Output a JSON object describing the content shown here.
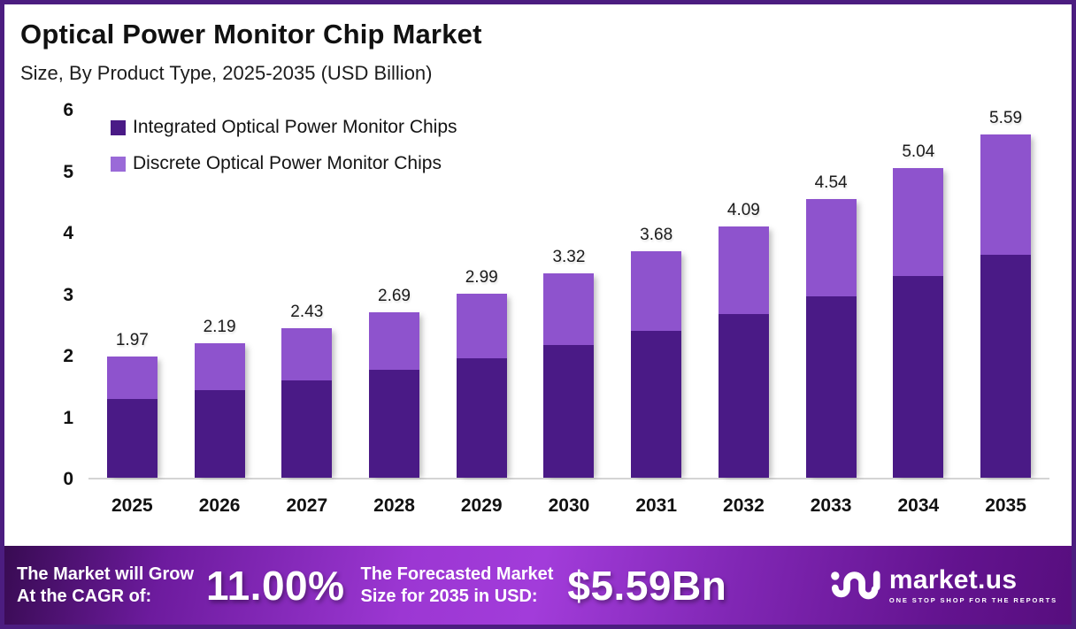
{
  "header": {
    "title": "Optical Power Monitor Chip Market",
    "subtitle": "Size, By Product Type, 2025-2035 (USD Billion)"
  },
  "colors": {
    "integrated": "#4A1A86",
    "discrete": "#8E53CD",
    "legend_discrete": "#9A6AD8",
    "border": "#4C1D80",
    "banner_text": "#FFFFFF"
  },
  "chart_data": {
    "type": "bar",
    "stacked": true,
    "title": "Optical Power Monitor Chip Market Size, By Product Type, 2025-2035 (USD Billion)",
    "categories": [
      "2025",
      "2026",
      "2027",
      "2028",
      "2029",
      "2030",
      "2031",
      "2032",
      "2033",
      "2034",
      "2035"
    ],
    "series": [
      {
        "name": "Integrated Optical Power Monitor Chips",
        "color": "#4A1A86",
        "values": [
          1.28,
          1.42,
          1.58,
          1.75,
          1.94,
          2.16,
          2.39,
          2.66,
          2.95,
          3.28,
          3.63
        ]
      },
      {
        "name": "Discrete Optical Power Monitor Chips",
        "color": "#8E53CD",
        "values": [
          0.69,
          0.77,
          0.85,
          0.94,
          1.05,
          1.16,
          1.29,
          1.43,
          1.59,
          1.76,
          1.96
        ]
      }
    ],
    "totals": [
      1.97,
      2.19,
      2.43,
      2.69,
      2.99,
      3.32,
      3.68,
      4.09,
      4.54,
      5.04,
      5.59
    ],
    "total_labels": [
      "1.97",
      "2.19",
      "2.43",
      "2.69",
      "2.99",
      "3.32",
      "3.68",
      "4.09",
      "4.54",
      "5.04",
      "5.59"
    ],
    "xlabel": "",
    "ylabel": "USD Billion",
    "ylim": [
      0,
      6
    ],
    "yticks": [
      "0",
      "1",
      "2",
      "3",
      "4",
      "5",
      "6"
    ],
    "grid": false,
    "legend_position": "top-left"
  },
  "banner": {
    "cagr_label_line1": "The Market will Grow",
    "cagr_label_line2": "At the CAGR of:",
    "cagr_value": "11.00%",
    "forecast_label_line1": "The Forecasted Market",
    "forecast_label_line2": "Size for 2035 in USD:",
    "forecast_value": "$5.59Bn",
    "logo_name": "market.us",
    "logo_tagline": "ONE STOP SHOP FOR THE REPORTS"
  }
}
